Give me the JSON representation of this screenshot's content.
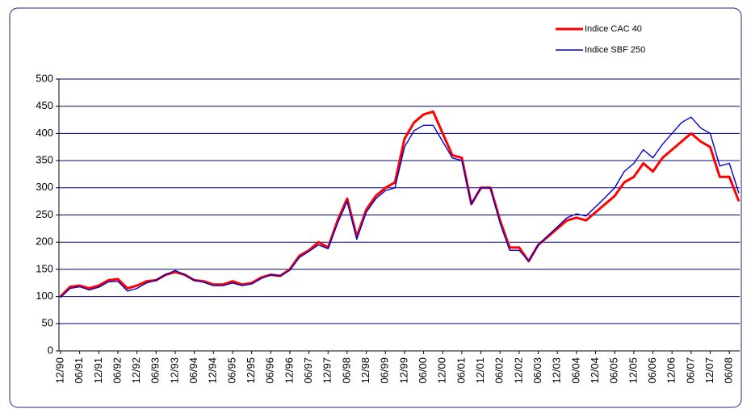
{
  "chart_data": {
    "type": "line",
    "categories": [
      "12/90",
      null,
      "06/91",
      null,
      "12/91",
      null,
      "06/92",
      null,
      "12/92",
      null,
      "06/93",
      null,
      "12/93",
      null,
      "06/94",
      null,
      "12/94",
      null,
      "06/95",
      null,
      "12/95",
      null,
      "06/96",
      null,
      "12/96",
      null,
      "06/97",
      null,
      "12/97",
      null,
      "06/98",
      null,
      "12/98",
      null,
      "06/99",
      null,
      "12/99",
      null,
      "06/00",
      null,
      "12/00",
      null,
      "06/01",
      null,
      "12/01",
      null,
      "06/02",
      null,
      "12/02",
      null,
      "06/03",
      null,
      "12/03",
      null,
      "06/04",
      null,
      "12/04",
      null,
      "06/05",
      null,
      "12/05",
      null,
      "06/06",
      null,
      "12/06",
      null,
      "06/07",
      null,
      "12/07",
      null,
      "06/08",
      null
    ],
    "series": [
      {
        "name": "Indice CAC 40",
        "color": "#ff0000",
        "values": [
          100,
          118,
          120,
          115,
          120,
          130,
          132,
          115,
          120,
          128,
          130,
          140,
          145,
          140,
          130,
          128,
          122,
          122,
          128,
          122,
          125,
          135,
          140,
          138,
          150,
          175,
          185,
          200,
          190,
          240,
          280,
          210,
          260,
          285,
          300,
          310,
          390,
          420,
          435,
          440,
          400,
          360,
          355,
          270,
          300,
          300,
          240,
          190,
          190,
          165,
          195,
          210,
          225,
          240,
          245,
          240,
          255,
          270,
          285,
          310,
          320,
          345,
          330,
          355,
          370,
          385,
          400,
          385,
          375,
          320,
          320,
          275
        ]
      },
      {
        "name": "Indice SBF 250",
        "color": "#0000cc",
        "values": [
          98,
          115,
          118,
          112,
          117,
          127,
          128,
          110,
          115,
          125,
          130,
          140,
          148,
          140,
          130,
          126,
          120,
          120,
          125,
          120,
          123,
          133,
          140,
          138,
          148,
          172,
          183,
          195,
          188,
          235,
          275,
          205,
          255,
          280,
          295,
          300,
          375,
          405,
          415,
          415,
          385,
          355,
          350,
          270,
          300,
          300,
          235,
          185,
          185,
          165,
          195,
          212,
          228,
          245,
          252,
          248,
          265,
          282,
          300,
          330,
          345,
          370,
          355,
          380,
          400,
          420,
          430,
          410,
          400,
          340,
          345,
          290
        ]
      }
    ],
    "ylim": [
      0,
      500
    ],
    "yticks": [
      0,
      50,
      100,
      150,
      200,
      250,
      300,
      350,
      400,
      450,
      500
    ],
    "grid": true,
    "legend": "top-right"
  }
}
